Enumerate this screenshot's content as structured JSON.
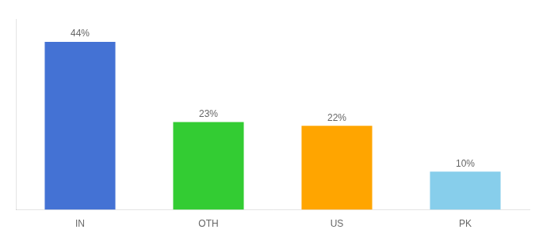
{
  "chart_data": {
    "type": "bar",
    "categories": [
      "IN",
      "OTH",
      "US",
      "PK"
    ],
    "values": [
      44,
      23,
      22,
      10
    ],
    "value_labels": [
      "44%",
      "23%",
      "22%",
      "10%"
    ],
    "colors": [
      "#4472D4",
      "#33CC33",
      "#FFA500",
      "#87CEEB"
    ],
    "ylim": [
      0,
      50
    ],
    "grid": false,
    "data_labels": true,
    "tick_labels": "x"
  }
}
